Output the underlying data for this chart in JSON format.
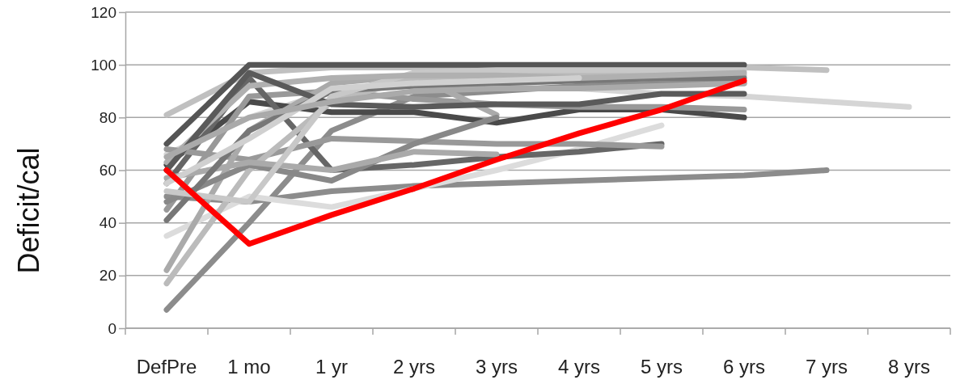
{
  "chart_data": {
    "type": "line",
    "ylabel": "Deficit/cal",
    "categories": [
      "DefPre",
      "1 mo",
      "1 yr",
      "2 yrs",
      "3 yrs",
      "4 yrs",
      "5 yrs",
      "6 yrs",
      "7 yrs",
      "8 yrs"
    ],
    "ylim": [
      0,
      120
    ],
    "yticks": [
      0,
      20,
      40,
      60,
      80,
      100,
      120
    ],
    "grid": "y",
    "series": [
      {
        "color": "#d5d5d5",
        "values": [
          66,
          80,
          90,
          92,
          92,
          91,
          89,
          88,
          86,
          84
        ]
      },
      {
        "color": "#c0c0c0",
        "values": [
          81,
          97,
          99,
          99,
          99,
          99,
          99,
          99,
          98,
          null
        ]
      },
      {
        "color": "#8c8c8c",
        "values": [
          50,
          48,
          52,
          54,
          55,
          56,
          57,
          58,
          60,
          null
        ]
      },
      {
        "color": "#8c8c8c",
        "values": [
          7,
          40,
          75,
          88,
          90,
          92,
          93,
          93,
          null,
          null
        ]
      },
      {
        "color": "#dcdcdc",
        "values": [
          35,
          50,
          46,
          53,
          60,
          68,
          77,
          null,
          null,
          null
        ]
      },
      {
        "color": "#4a4a4a",
        "values": [
          62,
          86,
          82,
          82,
          78,
          83,
          83,
          80,
          null,
          null
        ]
      },
      {
        "color": "#555555",
        "values": [
          70,
          100,
          100,
          100,
          100,
          100,
          100,
          100,
          null,
          null
        ]
      },
      {
        "color": "#999999",
        "values": [
          45,
          88,
          90,
          87,
          85,
          84,
          84,
          83,
          null,
          null
        ]
      },
      {
        "color": "#666666",
        "values": [
          55,
          95,
          60,
          62,
          65,
          67,
          70,
          null,
          null,
          null
        ]
      },
      {
        "color": "#999999",
        "values": [
          68,
          64,
          72,
          71,
          70,
          70,
          69,
          null,
          null,
          null
        ]
      },
      {
        "color": "#aaaaaa",
        "values": [
          22,
          75,
          93,
          96,
          81,
          null,
          null,
          null,
          null,
          null
        ]
      },
      {
        "color": "#bbbbbb",
        "values": [
          17,
          60,
          86,
          95,
          96,
          97,
          97,
          96,
          null,
          null
        ]
      },
      {
        "color": "#888888",
        "values": [
          48,
          62,
          56,
          70,
          80,
          null,
          null,
          null,
          null,
          null
        ]
      },
      {
        "color": "#aaaaaa",
        "values": [
          57,
          63,
          60,
          67,
          66,
          null,
          null,
          null,
          null,
          null
        ]
      },
      {
        "color": "#777777",
        "values": [
          41,
          75,
          90,
          92,
          93,
          94,
          95,
          95,
          null,
          null
        ]
      },
      {
        "color": "#c8c8c8",
        "values": [
          52,
          48,
          88,
          97,
          98,
          98,
          98,
          98,
          null,
          null
        ]
      },
      {
        "color": "#b0b0b0",
        "values": [
          63,
          92,
          95,
          96,
          96,
          95,
          96,
          97,
          null,
          null
        ]
      },
      {
        "color": "#5a5a5a",
        "values": [
          60,
          97,
          85,
          84,
          85,
          85,
          89,
          89,
          null,
          null
        ]
      },
      {
        "color": "#d0d0d0",
        "values": [
          55,
          72,
          91,
          93,
          94,
          95,
          null,
          null,
          null,
          null
        ]
      },
      {
        "color": "#aaaaaa",
        "values": [
          65,
          80,
          86,
          90,
          91,
          91,
          92,
          93,
          null,
          null
        ]
      },
      {
        "color": "#ff0000",
        "values": [
          60,
          32,
          43,
          53,
          64,
          74,
          83,
          94,
          null,
          null
        ]
      }
    ]
  }
}
